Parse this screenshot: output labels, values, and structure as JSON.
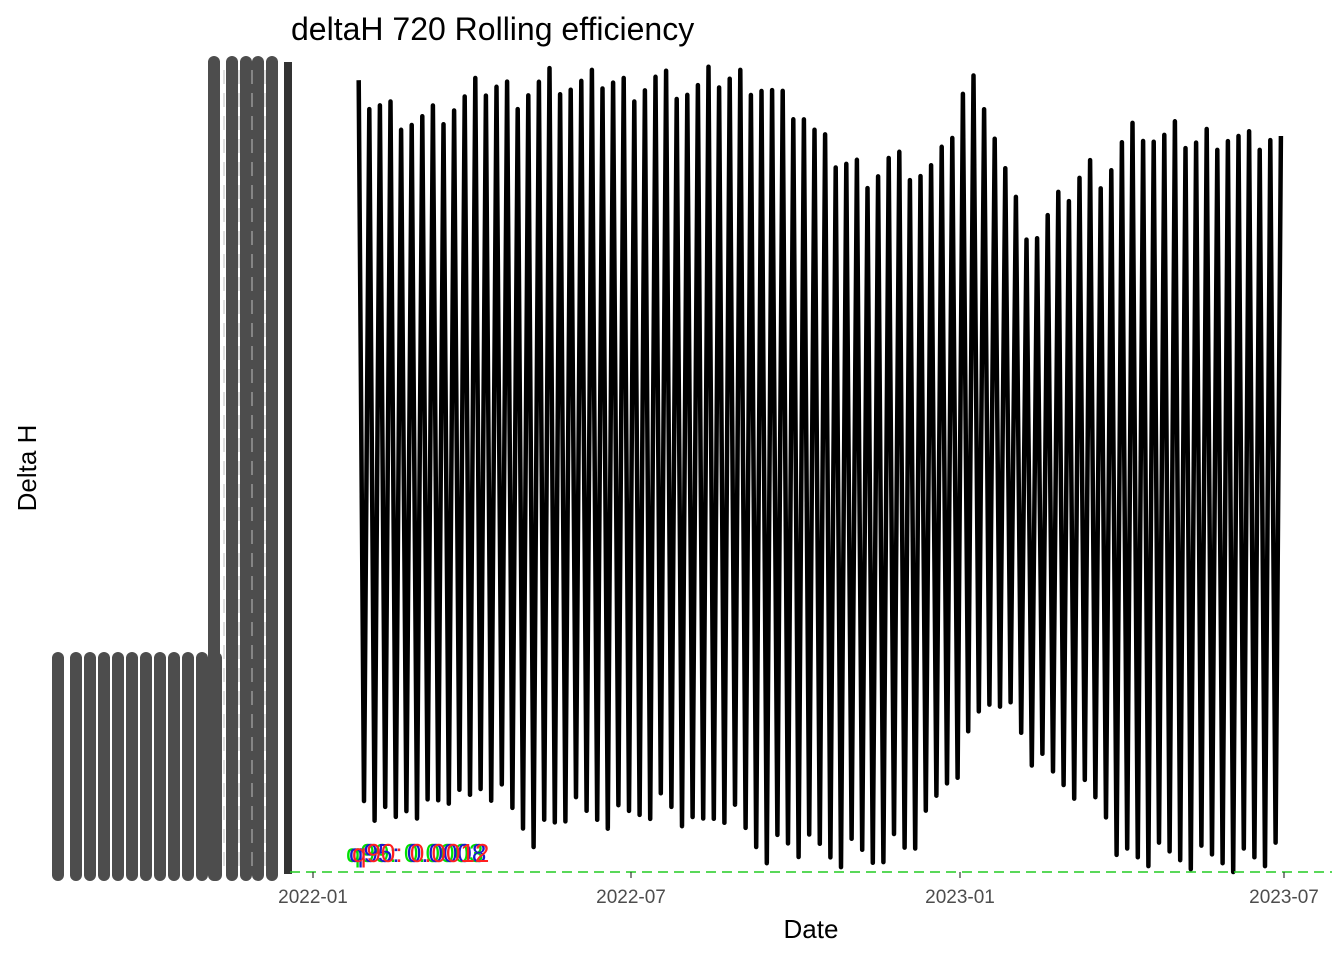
{
  "chart_data": {
    "type": "line",
    "title": "deltaH 720 Rolling efficiency",
    "xlabel": "Date",
    "ylabel": "Delta H",
    "x_ticks": [
      "2022-01",
      "2022-07",
      "2023-01",
      "2023-07"
    ],
    "x_range": [
      "2021-12-16",
      "2023-07-08"
    ],
    "y_range": [
      0,
      1
    ],
    "y_tick_labels": [],
    "grid": false,
    "reference_lines": [
      {
        "label": "q99",
        "value": 0,
        "color": "#22cc22",
        "style": "dashed"
      }
    ],
    "annotations": [
      {
        "text": "q99: 0.0003",
        "color": "#00e000"
      },
      {
        "text": "q95: 0.0008",
        "color": "#1a1acc"
      },
      {
        "text": "q90: 0.0012",
        "color": "#ff2020"
      }
    ],
    "series": [
      {
        "color": "#000000",
        "x": [
          "2022-01-27",
          "2022-02-05",
          "2022-02-15",
          "2022-02-25",
          "2022-03-08",
          "2022-03-18",
          "2022-03-28",
          "2022-04-07",
          "2022-04-17",
          "2022-04-27",
          "2022-05-07",
          "2022-05-17",
          "2022-05-27",
          "2022-06-06",
          "2022-06-16",
          "2022-06-26",
          "2022-07-06",
          "2022-07-16",
          "2022-07-26",
          "2022-08-05",
          "2022-08-15",
          "2022-08-25",
          "2022-09-04",
          "2022-09-14",
          "2022-09-24",
          "2022-10-04",
          "2022-10-14",
          "2022-10-24",
          "2022-11-03",
          "2022-11-13",
          "2022-11-23",
          "2022-12-03",
          "2022-12-13",
          "2022-12-23",
          "2023-01-02",
          "2023-01-12",
          "2023-01-22",
          "2023-02-01",
          "2023-02-11",
          "2023-02-21",
          "2023-03-03",
          "2023-03-13",
          "2023-03-23",
          "2023-04-02",
          "2023-04-12",
          "2023-04-22",
          "2023-05-02",
          "2023-05-12",
          "2023-05-22",
          "2023-06-01",
          "2023-06-11",
          "2023-06-21",
          "2023-07-01"
        ],
        "upper": [
          0.98,
          0.97,
          0.96,
          0.95,
          0.95,
          0.96,
          0.97,
          0.99,
          0.99,
          0.98,
          0.99,
          1.0,
          0.99,
          0.99,
          1.0,
          0.99,
          0.99,
          1.0,
          0.99,
          0.98,
          1.0,
          1.0,
          1.0,
          0.99,
          0.97,
          0.96,
          0.92,
          0.9,
          0.89,
          0.88,
          0.9,
          0.89,
          0.88,
          0.9,
          0.98,
          1.0,
          0.92,
          0.84,
          0.8,
          0.83,
          0.86,
          0.89,
          0.88,
          0.92,
          0.94,
          0.92,
          0.93,
          0.92,
          0.93,
          0.93,
          0.92,
          0.93,
          0.92
        ],
        "lower": [
          0.08,
          0.06,
          0.04,
          0.07,
          0.06,
          0.08,
          0.06,
          0.09,
          0.08,
          0.05,
          0.03,
          0.04,
          0.06,
          0.05,
          0.05,
          0.05,
          0.06,
          0.07,
          0.06,
          0.03,
          0.05,
          0.06,
          0.03,
          0.01,
          0.02,
          0.01,
          0.01,
          0.0,
          0.01,
          0.0,
          0.02,
          0.01,
          0.04,
          0.09,
          0.12,
          0.18,
          0.21,
          0.17,
          0.12,
          0.1,
          0.09,
          0.08,
          0.06,
          0.0,
          0.0,
          0.0,
          0.0,
          0.0,
          0.0,
          0.0,
          0.0,
          0.0,
          0.0
        ]
      }
    ],
    "legend_glyphs": "overplotted"
  }
}
